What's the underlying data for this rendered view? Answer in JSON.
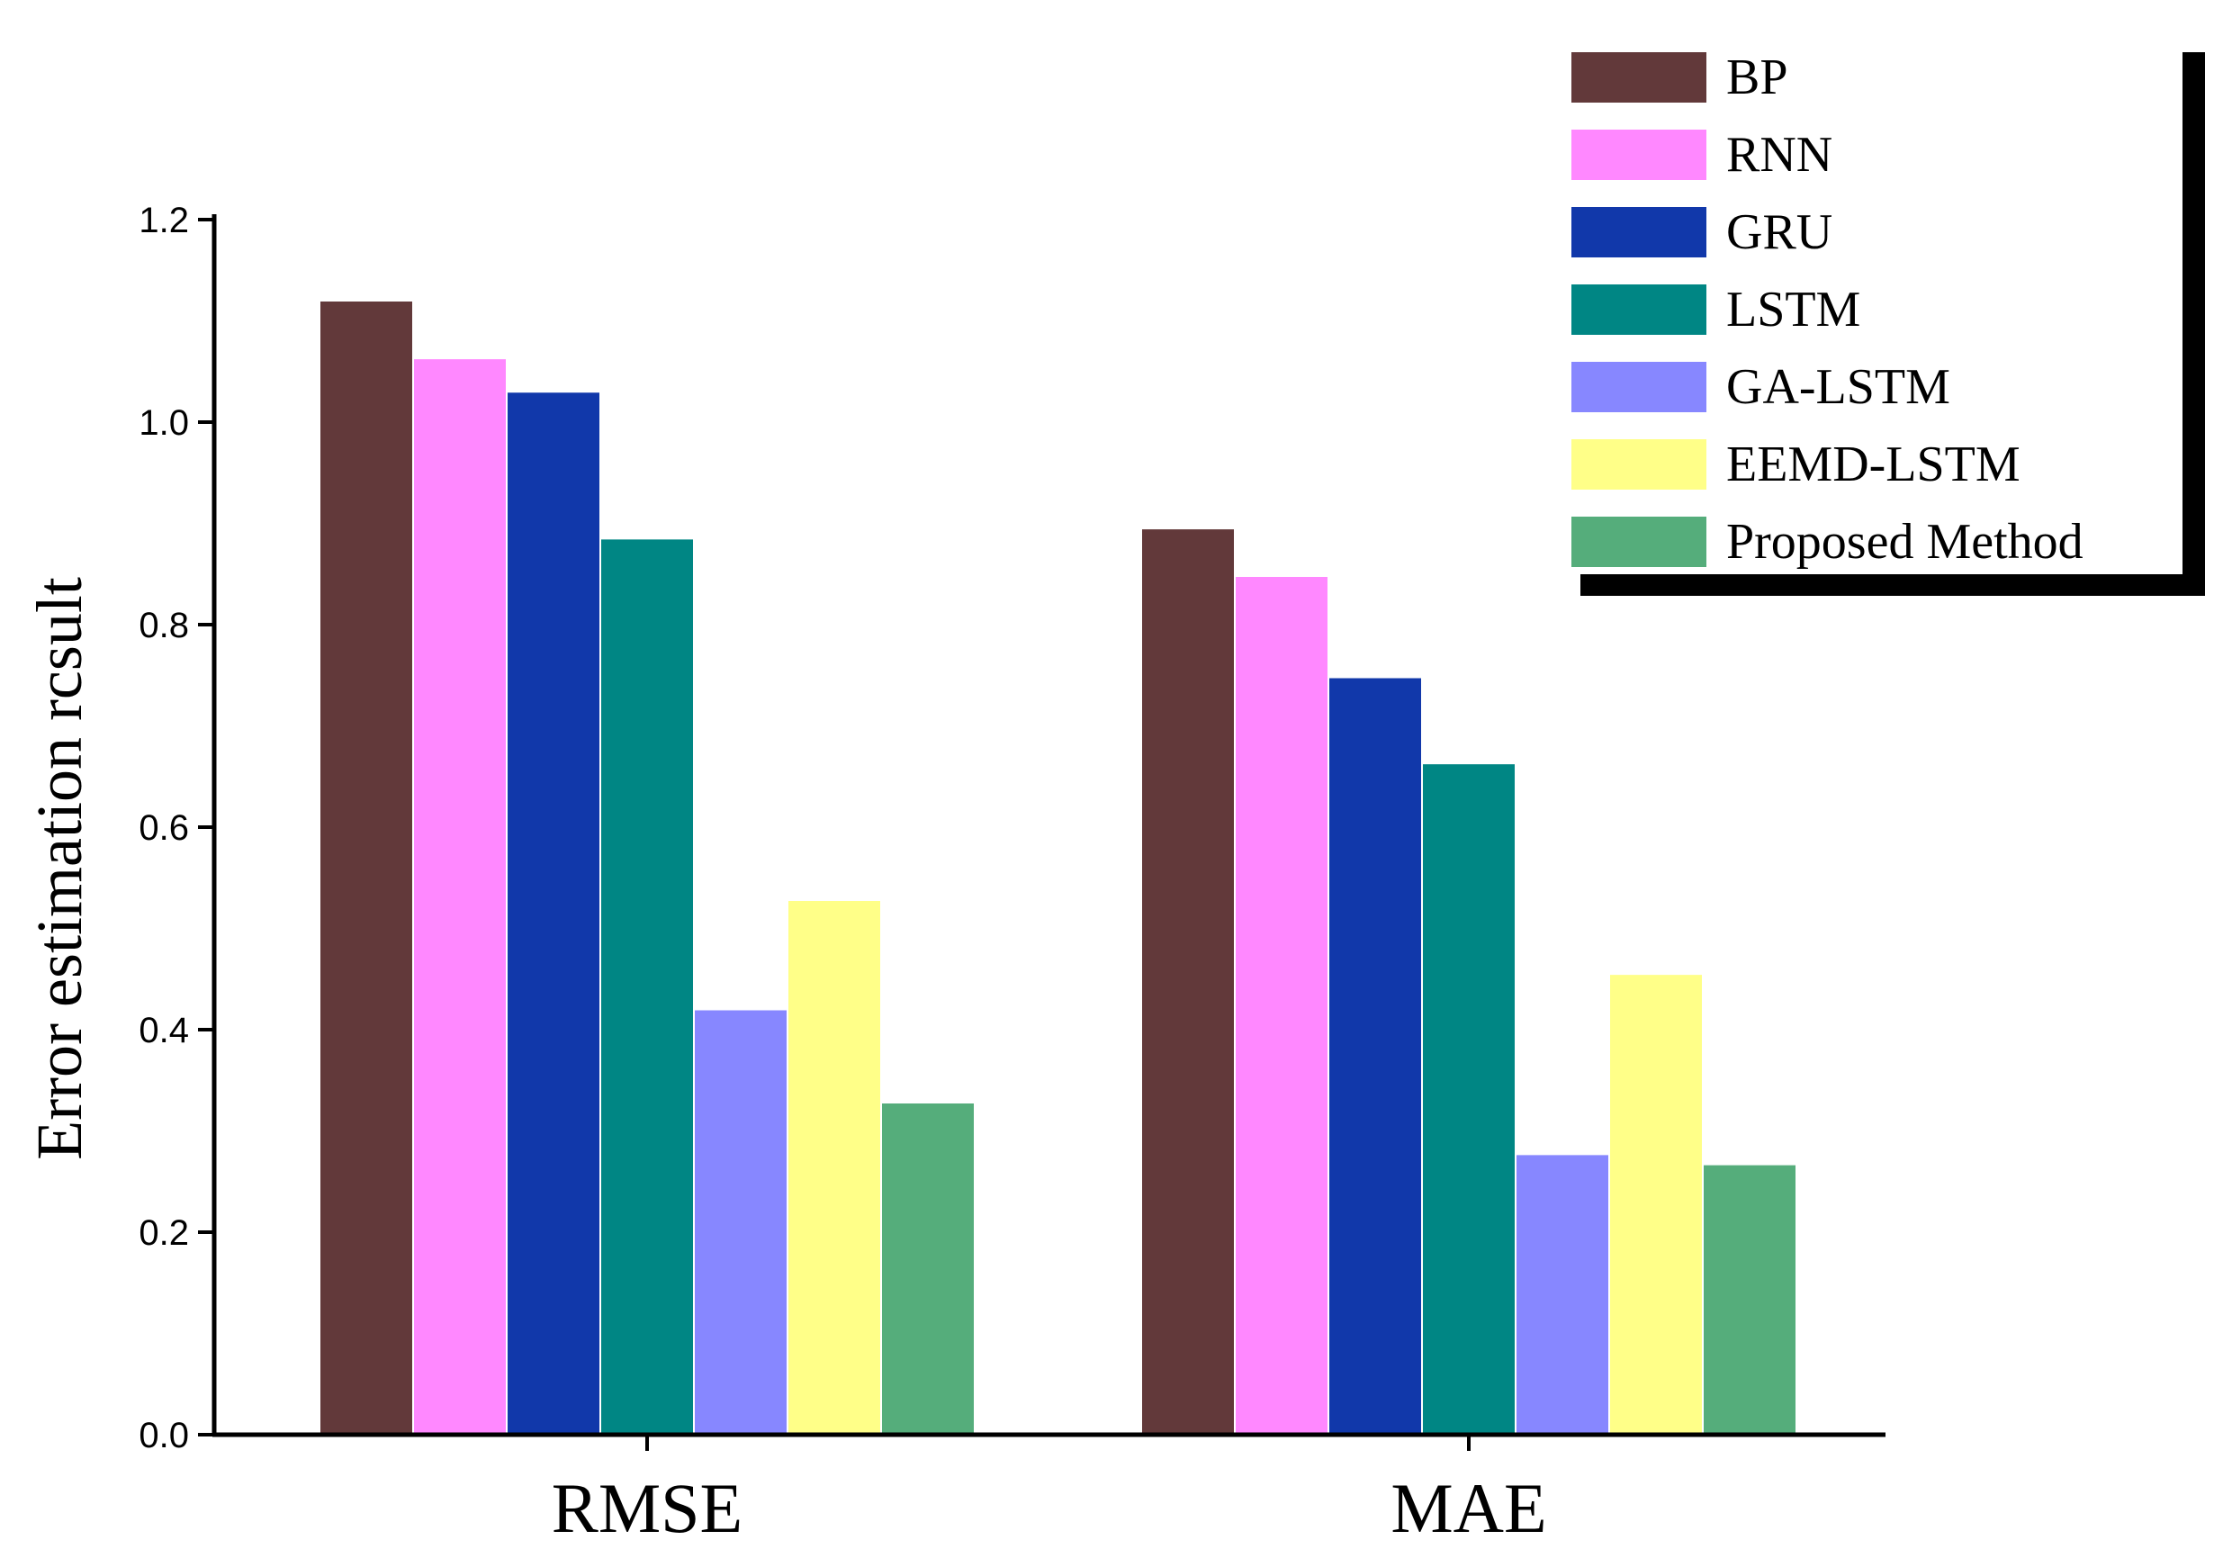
{
  "chart_data": {
    "type": "bar",
    "title": "",
    "xlabel": "",
    "ylabel": "Error estimation rcsult",
    "categories": [
      "RMSE",
      "MAE"
    ],
    "ylim": [
      0,
      1.2
    ],
    "yticks": [
      "0.0",
      "0.2",
      "0.4",
      "0.6",
      "0.8",
      "1.0",
      "1.2"
    ],
    "legend_position": "top-right",
    "series": [
      {
        "name": "BP",
        "color": "#62393a",
        "values": [
          1.12,
          0.895
        ]
      },
      {
        "name": "RNN",
        "color": "#ff88ff",
        "values": [
          1.063,
          0.848
        ]
      },
      {
        "name": "GRU",
        "color": "#1138aa",
        "values": [
          1.03,
          0.748
        ]
      },
      {
        "name": "LSTM",
        "color": "#008684",
        "values": [
          0.885,
          0.663
        ]
      },
      {
        "name": "GA-LSTM",
        "color": "#8787ff",
        "values": [
          0.42,
          0.277
        ]
      },
      {
        "name": "EEMD-LSTM",
        "color": "#ffff88",
        "values": [
          0.528,
          0.455
        ]
      },
      {
        "name": "Proposed Method",
        "color": "#55ad7b",
        "values": [
          0.328,
          0.267
        ]
      }
    ]
  }
}
